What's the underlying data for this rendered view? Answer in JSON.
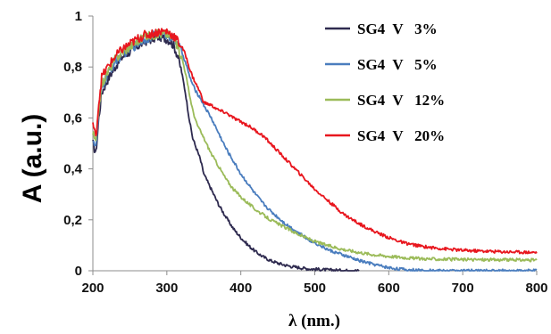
{
  "chart_data": {
    "type": "line",
    "title": "",
    "xlabel": "λ (nm.)",
    "ylabel": "A (a.u.)",
    "xlim": [
      200,
      800
    ],
    "ylim": [
      0,
      1
    ],
    "x_ticks": [
      200,
      300,
      400,
      500,
      600,
      700,
      800
    ],
    "y_ticks": [
      0,
      0.2,
      0.4,
      0.6,
      0.8,
      1
    ],
    "y_tick_labels": [
      "0",
      "0,2",
      "0,4",
      "0,6",
      "0,8",
      "1"
    ],
    "x_tick_labels": [
      "200",
      "300",
      "400",
      "500",
      "600",
      "700",
      "800"
    ],
    "grid": false,
    "legend_position": "top-right",
    "series": [
      {
        "name": "SG4  V   3%",
        "color": "#2e2a4f",
        "points": [
          [
            200,
            0.5
          ],
          [
            204,
            0.46
          ],
          [
            208,
            0.6
          ],
          [
            212,
            0.7
          ],
          [
            220,
            0.75
          ],
          [
            230,
            0.8
          ],
          [
            240,
            0.84
          ],
          [
            250,
            0.86
          ],
          [
            260,
            0.88
          ],
          [
            270,
            0.9
          ],
          [
            280,
            0.91
          ],
          [
            290,
            0.92
          ],
          [
            300,
            0.91
          ],
          [
            305,
            0.9
          ],
          [
            310,
            0.88
          ],
          [
            315,
            0.84
          ],
          [
            320,
            0.78
          ],
          [
            325,
            0.7
          ],
          [
            330,
            0.6
          ],
          [
            335,
            0.52
          ],
          [
            340,
            0.48
          ],
          [
            345,
            0.44
          ],
          [
            350,
            0.38
          ],
          [
            360,
            0.32
          ],
          [
            370,
            0.26
          ],
          [
            380,
            0.21
          ],
          [
            390,
            0.165
          ],
          [
            400,
            0.13
          ],
          [
            410,
            0.1
          ],
          [
            420,
            0.075
          ],
          [
            430,
            0.055
          ],
          [
            440,
            0.04
          ],
          [
            450,
            0.03
          ],
          [
            460,
            0.022
          ],
          [
            470,
            0.016
          ],
          [
            480,
            0.012
          ],
          [
            490,
            0.008
          ],
          [
            500,
            0.006
          ],
          [
            520,
            0.003
          ],
          [
            540,
            0.001
          ],
          [
            560,
            0.0
          ]
        ]
      },
      {
        "name": "SG4  V   5%",
        "color": "#4a7dbe",
        "points": [
          [
            200,
            0.52
          ],
          [
            204,
            0.48
          ],
          [
            208,
            0.62
          ],
          [
            212,
            0.72
          ],
          [
            220,
            0.77
          ],
          [
            230,
            0.82
          ],
          [
            240,
            0.85
          ],
          [
            250,
            0.87
          ],
          [
            260,
            0.89
          ],
          [
            270,
            0.91
          ],
          [
            280,
            0.92
          ],
          [
            290,
            0.93
          ],
          [
            300,
            0.925
          ],
          [
            305,
            0.92
          ],
          [
            310,
            0.91
          ],
          [
            315,
            0.89
          ],
          [
            320,
            0.86
          ],
          [
            325,
            0.82
          ],
          [
            330,
            0.77
          ],
          [
            335,
            0.73
          ],
          [
            340,
            0.7
          ],
          [
            345,
            0.68
          ],
          [
            350,
            0.65
          ],
          [
            360,
            0.6
          ],
          [
            370,
            0.54
          ],
          [
            380,
            0.48
          ],
          [
            390,
            0.43
          ],
          [
            400,
            0.38
          ],
          [
            410,
            0.34
          ],
          [
            420,
            0.3
          ],
          [
            430,
            0.265
          ],
          [
            440,
            0.235
          ],
          [
            450,
            0.21
          ],
          [
            460,
            0.185
          ],
          [
            470,
            0.165
          ],
          [
            480,
            0.145
          ],
          [
            490,
            0.125
          ],
          [
            500,
            0.11
          ],
          [
            520,
            0.08
          ],
          [
            540,
            0.06
          ],
          [
            560,
            0.04
          ],
          [
            580,
            0.025
          ],
          [
            600,
            0.012
          ],
          [
            620,
            0.005
          ],
          [
            640,
            0.001
          ],
          [
            660,
            0.0
          ],
          [
            700,
            0.0
          ],
          [
            750,
            0.0
          ],
          [
            800,
            0.0
          ]
        ]
      },
      {
        "name": "SG4  V   12%",
        "color": "#9bbb59",
        "points": [
          [
            200,
            0.54
          ],
          [
            204,
            0.5
          ],
          [
            208,
            0.64
          ],
          [
            212,
            0.73
          ],
          [
            220,
            0.78
          ],
          [
            230,
            0.83
          ],
          [
            240,
            0.86
          ],
          [
            250,
            0.88
          ],
          [
            260,
            0.9
          ],
          [
            270,
            0.92
          ],
          [
            280,
            0.925
          ],
          [
            290,
            0.93
          ],
          [
            300,
            0.93
          ],
          [
            305,
            0.92
          ],
          [
            310,
            0.91
          ],
          [
            315,
            0.88
          ],
          [
            320,
            0.84
          ],
          [
            325,
            0.78
          ],
          [
            330,
            0.7
          ],
          [
            335,
            0.63
          ],
          [
            340,
            0.58
          ],
          [
            345,
            0.55
          ],
          [
            350,
            0.52
          ],
          [
            360,
            0.46
          ],
          [
            370,
            0.41
          ],
          [
            380,
            0.36
          ],
          [
            390,
            0.32
          ],
          [
            400,
            0.29
          ],
          [
            410,
            0.265
          ],
          [
            420,
            0.24
          ],
          [
            430,
            0.22
          ],
          [
            440,
            0.2
          ],
          [
            450,
            0.185
          ],
          [
            460,
            0.17
          ],
          [
            470,
            0.155
          ],
          [
            480,
            0.14
          ],
          [
            490,
            0.128
          ],
          [
            500,
            0.115
          ],
          [
            520,
            0.097
          ],
          [
            540,
            0.083
          ],
          [
            560,
            0.072
          ],
          [
            580,
            0.063
          ],
          [
            600,
            0.057
          ],
          [
            620,
            0.052
          ],
          [
            640,
            0.048
          ],
          [
            660,
            0.046
          ],
          [
            700,
            0.044
          ],
          [
            750,
            0.043
          ],
          [
            800,
            0.042
          ]
        ]
      },
      {
        "name": "SG4  V   20%",
        "color": "#e8161e",
        "points": [
          [
            200,
            0.58
          ],
          [
            204,
            0.52
          ],
          [
            208,
            0.66
          ],
          [
            212,
            0.76
          ],
          [
            220,
            0.8
          ],
          [
            230,
            0.84
          ],
          [
            240,
            0.87
          ],
          [
            250,
            0.89
          ],
          [
            260,
            0.91
          ],
          [
            270,
            0.925
          ],
          [
            280,
            0.93
          ],
          [
            290,
            0.94
          ],
          [
            300,
            0.94
          ],
          [
            305,
            0.93
          ],
          [
            310,
            0.92
          ],
          [
            315,
            0.9
          ],
          [
            320,
            0.88
          ],
          [
            325,
            0.85
          ],
          [
            330,
            0.8
          ],
          [
            335,
            0.76
          ],
          [
            340,
            0.73
          ],
          [
            345,
            0.7
          ],
          [
            350,
            0.66
          ],
          [
            360,
            0.65
          ],
          [
            370,
            0.63
          ],
          [
            380,
            0.62
          ],
          [
            390,
            0.6
          ],
          [
            400,
            0.585
          ],
          [
            410,
            0.57
          ],
          [
            420,
            0.55
          ],
          [
            430,
            0.53
          ],
          [
            440,
            0.5
          ],
          [
            450,
            0.47
          ],
          [
            460,
            0.44
          ],
          [
            470,
            0.41
          ],
          [
            480,
            0.38
          ],
          [
            490,
            0.35
          ],
          [
            500,
            0.32
          ],
          [
            520,
            0.27
          ],
          [
            540,
            0.22
          ],
          [
            560,
            0.185
          ],
          [
            580,
            0.155
          ],
          [
            600,
            0.13
          ],
          [
            620,
            0.11
          ],
          [
            640,
            0.098
          ],
          [
            660,
            0.09
          ],
          [
            700,
            0.08
          ],
          [
            750,
            0.075
          ],
          [
            800,
            0.072
          ]
        ]
      }
    ]
  }
}
